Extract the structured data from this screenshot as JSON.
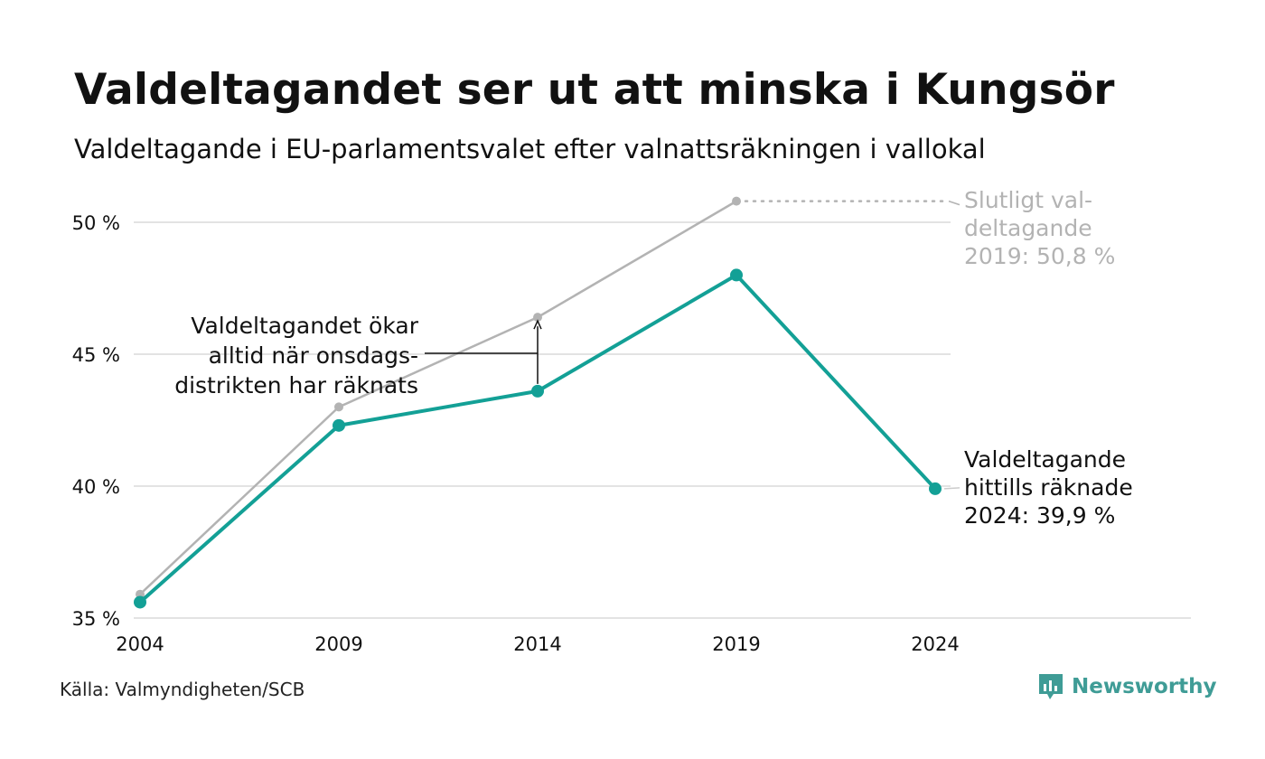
{
  "title": "Valdeltagandet ser ut att minska i Kungsör",
  "subtitle": "Valdeltagande i EU-parlamentsvalet efter valnattsräkningen i vallokal",
  "source": "Källa: Valmyndigheten/SCB",
  "brand": {
    "name": "Newsworthy",
    "icon": "newsworthy-logo-icon"
  },
  "colors": {
    "current": "#13a096",
    "final": "#b3b3b3",
    "grid": "#e3e3e3",
    "text": "#111111"
  },
  "chart_data": {
    "type": "line",
    "categories": [
      "2004",
      "2009",
      "2014",
      "2019",
      "2024"
    ],
    "y_ticks": [
      35,
      40,
      45,
      50
    ],
    "y_tick_labels": [
      "35 %",
      "40 %",
      "45 %",
      "50 %"
    ],
    "ylim": [
      35,
      51.5
    ],
    "grid": true,
    "series": [
      {
        "key": "final",
        "values": [
          35.9,
          43.0,
          46.4,
          50.8,
          null
        ]
      },
      {
        "key": "current",
        "values": [
          35.6,
          42.3,
          43.6,
          48.0,
          39.9
        ]
      }
    ],
    "annotations": {
      "final_label": [
        "Slutligt val-",
        "deltagande",
        "2019: 50,8 %"
      ],
      "current_label": [
        "Valdeltagande",
        "hittills räknade",
        "2024: 39,9 %"
      ],
      "gap_label": [
        "Valdeltagandet ökar",
        "alltid när onsdags-",
        "distrikten har räknats"
      ]
    }
  }
}
